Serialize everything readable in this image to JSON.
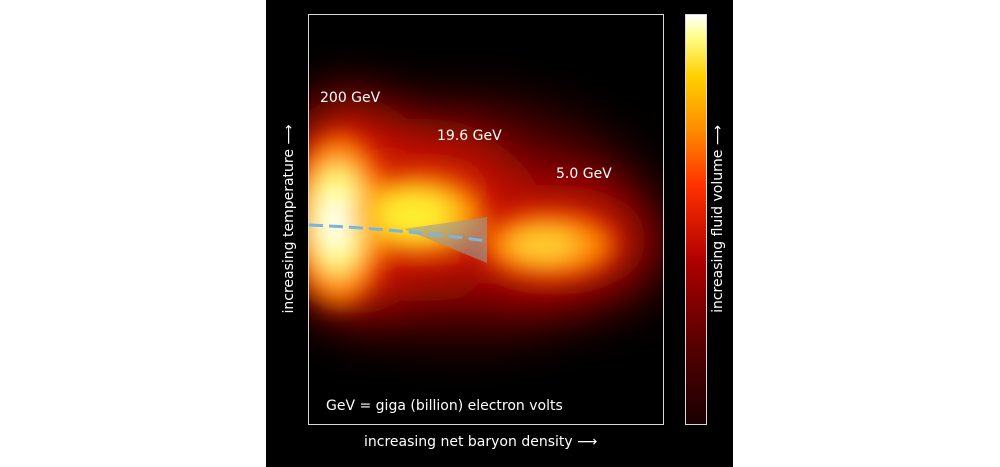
{
  "chart_data": {
    "type": "heatmap",
    "xlabel": "increasing net baryon density ⟶",
    "ylabel": "increasing temperature ⟶",
    "colorbar_label": "increasing fluid volume ⟶",
    "annotation": "GeV = giga (billion) electron volts",
    "series": [
      {
        "name": "200 GeV"
      },
      {
        "name": "19.6 GeV"
      },
      {
        "name": "5.0 GeV"
      }
    ],
    "colors": {
      "background": "#000000",
      "crossover_line": "#7ab4e0",
      "critical_cone": "#9a9a9a",
      "colormap": [
        "#1a0000",
        "#b00000",
        "#ff3000",
        "#ff8c00",
        "#ffd000",
        "#ffffff"
      ]
    }
  }
}
